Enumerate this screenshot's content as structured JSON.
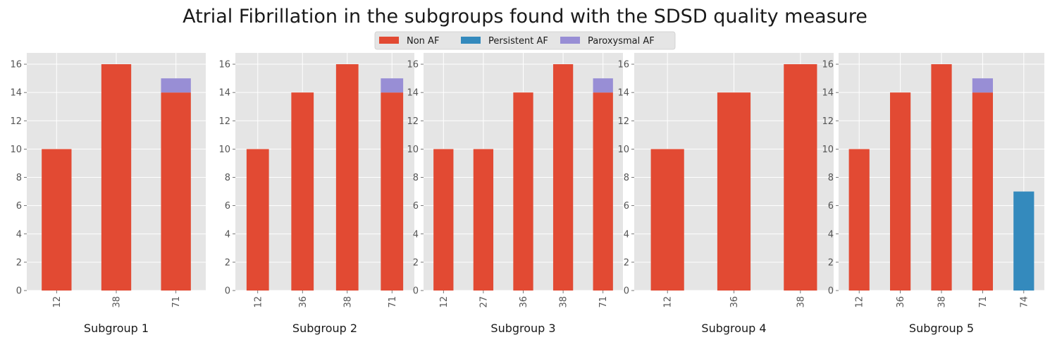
{
  "chart_data": {
    "type": "bar",
    "title": "Atrial Fibrillation in the subgroups found with the SDSD quality measure",
    "stacked": true,
    "legend": {
      "placement": "top-center",
      "entries": [
        "Non AF",
        "Persistent AF",
        "Paroxysmal AF"
      ]
    },
    "colors": {
      "Non AF": "#E24A33",
      "Persistent AF": "#348ABD",
      "Paroxysmal AF": "#988ED5",
      "plot_background": "#E5E5E5",
      "grid": "#FFFFFF"
    },
    "grid": true,
    "ylim": [
      0,
      16.8
    ],
    "yticks": [
      0,
      2,
      4,
      6,
      8,
      10,
      12,
      14,
      16
    ],
    "panels": [
      {
        "xlabel": "Subgroup 1",
        "categories": [
          "12",
          "38",
          "71"
        ],
        "series": [
          {
            "name": "Non AF",
            "values": [
              10,
              16,
              14
            ]
          },
          {
            "name": "Persistent AF",
            "values": [
              0,
              0,
              0
            ]
          },
          {
            "name": "Paroxysmal AF",
            "values": [
              0,
              0,
              1
            ]
          }
        ]
      },
      {
        "xlabel": "Subgroup 2",
        "categories": [
          "12",
          "36",
          "38",
          "71"
        ],
        "series": [
          {
            "name": "Non AF",
            "values": [
              10,
              14,
              16,
              14
            ]
          },
          {
            "name": "Persistent AF",
            "values": [
              0,
              0,
              0,
              0
            ]
          },
          {
            "name": "Paroxysmal AF",
            "values": [
              0,
              0,
              0,
              1
            ]
          }
        ]
      },
      {
        "xlabel": "Subgroup 3",
        "categories": [
          "12",
          "27",
          "36",
          "38",
          "71"
        ],
        "series": [
          {
            "name": "Non AF",
            "values": [
              10,
              10,
              14,
              16,
              14
            ]
          },
          {
            "name": "Persistent AF",
            "values": [
              0,
              0,
              0,
              0,
              0
            ]
          },
          {
            "name": "Paroxysmal AF",
            "values": [
              0,
              0,
              0,
              0,
              1
            ]
          }
        ]
      },
      {
        "xlabel": "Subgroup 4",
        "categories": [
          "12",
          "36",
          "38"
        ],
        "series": [
          {
            "name": "Non AF",
            "values": [
              10,
              14,
              16
            ]
          },
          {
            "name": "Persistent AF",
            "values": [
              0,
              0,
              0
            ]
          },
          {
            "name": "Paroxysmal AF",
            "values": [
              0,
              0,
              0
            ]
          }
        ]
      },
      {
        "xlabel": "Subgroup 5",
        "categories": [
          "12",
          "36",
          "38",
          "71",
          "74"
        ],
        "series": [
          {
            "name": "Non AF",
            "values": [
              10,
              14,
              16,
              14,
              0
            ]
          },
          {
            "name": "Persistent AF",
            "values": [
              0,
              0,
              0,
              0,
              7
            ]
          },
          {
            "name": "Paroxysmal AF",
            "values": [
              0,
              0,
              0,
              1,
              0
            ]
          }
        ]
      }
    ]
  }
}
